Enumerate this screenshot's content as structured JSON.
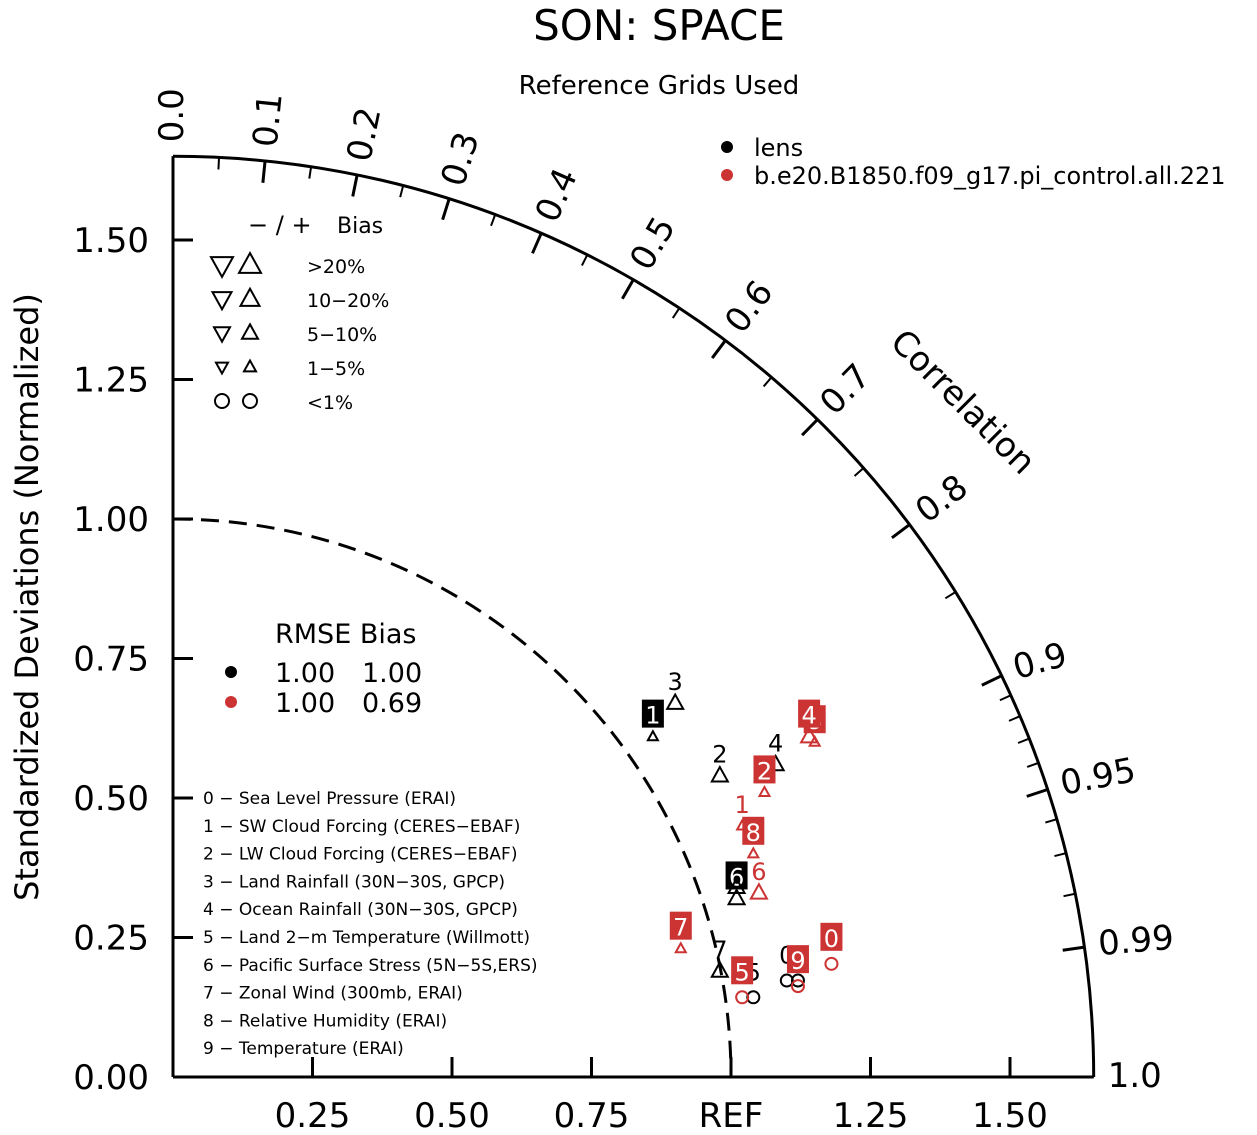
{
  "title": "SON: SPACE",
  "subtitle": "Reference Grids Used",
  "chart_data": {
    "type": "taylor",
    "title": "SON: SPACE",
    "subtitle": "Reference Grids Used",
    "ylabel": "Standardized Deviations (Normalized)",
    "arc_label": "Correlation",
    "ref_label": "REF",
    "std_range": [
      0,
      1.65
    ],
    "y_ticks": [
      "0.00",
      "0.25",
      "0.50",
      "0.75",
      "1.00",
      "1.25",
      "1.50"
    ],
    "x_ticks": [
      "0.25",
      "0.50",
      "0.75",
      "REF",
      "1.25",
      "1.50"
    ],
    "correlation_ticks": [
      "0.0",
      "0.1",
      "0.2",
      "0.3",
      "0.4",
      "0.5",
      "0.6",
      "0.7",
      "0.8",
      "0.9",
      "0.95",
      "0.99",
      "1.0"
    ],
    "series": [
      {
        "name": "lens",
        "color": "#000000"
      },
      {
        "name": "b.e20.B1850.f09_g17.pi_control.all.221",
        "color": "#cc3333"
      }
    ],
    "bias_legend": {
      "header_sign": "− / +",
      "header_label": "Bias",
      "rows": [
        ">20%",
        "10−20%",
        "5−10%",
        "1−5%",
        "<1%"
      ]
    },
    "rmse_legend": {
      "header": "RMSE  Bias",
      "rows": [
        {
          "rmse": "1.00",
          "bias": "1.00",
          "color": "#000000"
        },
        {
          "rmse": "1.00",
          "bias": "0.69",
          "color": "#cc3333"
        }
      ]
    },
    "variables": [
      "0 − Sea Level Pressure (ERAI)",
      "1 − SW Cloud Forcing (CERES−EBAF)",
      "2 − LW Cloud Forcing (CERES−EBAF)",
      "3 − Land Rainfall (30N−30S, GPCP)",
      "4 − Ocean Rainfall (30N−30S, GPCP)",
      "5 − Land 2−m Temperature (Willmott)",
      "6 − Pacific Surface Stress (5N−5S,ERS)",
      "7 − Zonal Wind (300mb, ERAI)",
      "8 − Relative Humidity (ERAI)",
      "9 − Temperature (ERAI)"
    ],
    "points": [
      {
        "series": 0,
        "id": "0",
        "x": 1.1,
        "y": 0.18,
        "marker": "circle",
        "label_style": "text"
      },
      {
        "series": 0,
        "id": "1",
        "x": 0.86,
        "y": 0.61,
        "marker": "tri-up-small",
        "label_style": "box"
      },
      {
        "series": 0,
        "id": "2",
        "x": 0.98,
        "y": 0.54,
        "marker": "tri-up",
        "label_style": "text"
      },
      {
        "series": 0,
        "id": "3",
        "x": 0.9,
        "y": 0.67,
        "marker": "tri-up",
        "label_style": "text"
      },
      {
        "series": 0,
        "id": "4",
        "x": 1.08,
        "y": 0.56,
        "marker": "tri-up",
        "label_style": "text"
      },
      {
        "series": 0,
        "id": "5",
        "x": 1.04,
        "y": 0.15,
        "marker": "circle",
        "label_style": "text"
      },
      {
        "series": 0,
        "id": "6",
        "x": 1.01,
        "y": 0.32,
        "marker": "tri-up",
        "label_style": "box"
      },
      {
        "series": 0,
        "id": "7",
        "x": 0.98,
        "y": 0.19,
        "marker": "tri-up",
        "label_style": "text"
      },
      {
        "series": 0,
        "id": "8",
        "x": 1.01,
        "y": 0.34,
        "marker": "tri-up",
        "label_style": "none"
      },
      {
        "series": 0,
        "id": "9",
        "x": 1.12,
        "y": 0.18,
        "marker": "circle",
        "label_style": "text"
      },
      {
        "series": 1,
        "id": "0",
        "x": 1.18,
        "y": 0.21,
        "marker": "circle",
        "label_style": "box"
      },
      {
        "series": 1,
        "id": "1",
        "x": 1.02,
        "y": 0.45,
        "marker": "tri-up-small",
        "label_style": "text"
      },
      {
        "series": 1,
        "id": "2",
        "x": 1.06,
        "y": 0.51,
        "marker": "tri-up-small",
        "label_style": "box"
      },
      {
        "series": 1,
        "id": "3",
        "x": 1.15,
        "y": 0.6,
        "marker": "tri-up-small",
        "label_style": "box"
      },
      {
        "series": 1,
        "id": "4",
        "x": 1.14,
        "y": 0.61,
        "marker": "tri-up",
        "label_style": "box"
      },
      {
        "series": 1,
        "id": "5",
        "x": 1.02,
        "y": 0.15,
        "marker": "circle",
        "label_style": "box"
      },
      {
        "series": 1,
        "id": "6",
        "x": 1.05,
        "y": 0.33,
        "marker": "tri-up",
        "label_style": "text"
      },
      {
        "series": 1,
        "id": "7",
        "x": 0.91,
        "y": 0.23,
        "marker": "tri-up-small",
        "label_style": "box"
      },
      {
        "series": 1,
        "id": "8",
        "x": 1.04,
        "y": 0.4,
        "marker": "tri-up-small",
        "label_style": "box"
      },
      {
        "series": 1,
        "id": "9",
        "x": 1.12,
        "y": 0.17,
        "marker": "circle",
        "label_style": "box"
      }
    ]
  }
}
